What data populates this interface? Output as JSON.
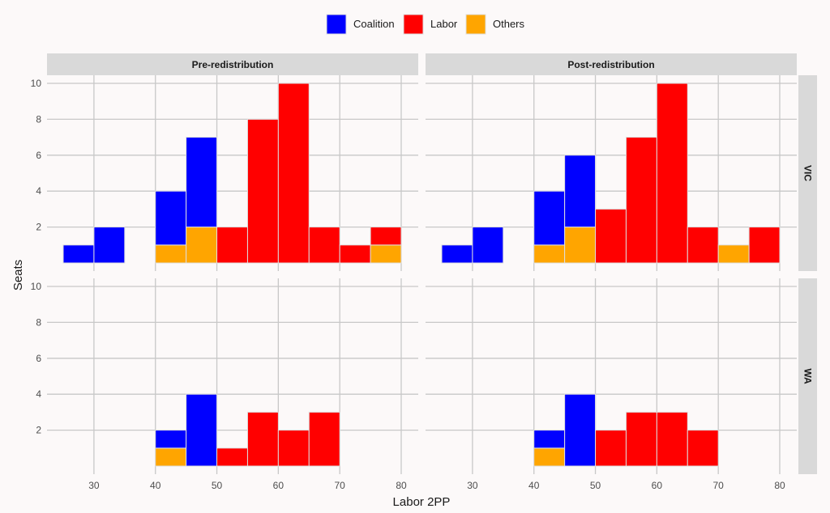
{
  "chart_data": {
    "type": "bar",
    "subtype": "faceted-stacked-histogram",
    "xlabel": "Labor 2PP",
    "ylabel": "Seats",
    "xlim": [
      25,
      80
    ],
    "ylim": [
      0,
      10
    ],
    "x_ticks": [
      30,
      40,
      50,
      60,
      70,
      80
    ],
    "y_ticks": [
      2,
      4,
      6,
      8,
      10
    ],
    "bin_width": 5,
    "grid": true,
    "legend": {
      "position": "top",
      "entries": [
        {
          "name": "Coalition",
          "color": "#0000ff"
        },
        {
          "name": "Labor",
          "color": "#ff0000"
        },
        {
          "name": "Others",
          "color": "#ffa500"
        }
      ]
    },
    "columns": [
      "Pre-redistribution",
      "Post-redistribution"
    ],
    "rows": [
      "VIC",
      "WA"
    ],
    "panels": [
      {
        "column": "Pre-redistribution",
        "row": "VIC",
        "bars": [
          {
            "x0": 25,
            "x1": 30,
            "stack": [
              {
                "party": "Coalition",
                "count": 1
              }
            ]
          },
          {
            "x0": 30,
            "x1": 35,
            "stack": [
              {
                "party": "Coalition",
                "count": 2
              }
            ]
          },
          {
            "x0": 40,
            "x1": 45,
            "stack": [
              {
                "party": "Others",
                "count": 1
              },
              {
                "party": "Coalition",
                "count": 3
              }
            ]
          },
          {
            "x0": 45,
            "x1": 50,
            "stack": [
              {
                "party": "Others",
                "count": 2
              },
              {
                "party": "Coalition",
                "count": 5
              }
            ]
          },
          {
            "x0": 50,
            "x1": 55,
            "stack": [
              {
                "party": "Labor",
                "count": 2
              }
            ]
          },
          {
            "x0": 55,
            "x1": 60,
            "stack": [
              {
                "party": "Labor",
                "count": 8
              }
            ]
          },
          {
            "x0": 60,
            "x1": 65,
            "stack": [
              {
                "party": "Labor",
                "count": 10
              }
            ]
          },
          {
            "x0": 65,
            "x1": 70,
            "stack": [
              {
                "party": "Labor",
                "count": 2
              }
            ]
          },
          {
            "x0": 70,
            "x1": 75,
            "stack": [
              {
                "party": "Labor",
                "count": 1
              }
            ]
          },
          {
            "x0": 75,
            "x1": 80,
            "stack": [
              {
                "party": "Others",
                "count": 1
              },
              {
                "party": "Labor",
                "count": 1
              }
            ]
          }
        ]
      },
      {
        "column": "Post-redistribution",
        "row": "VIC",
        "bars": [
          {
            "x0": 25,
            "x1": 30,
            "stack": [
              {
                "party": "Coalition",
                "count": 1
              }
            ]
          },
          {
            "x0": 30,
            "x1": 35,
            "stack": [
              {
                "party": "Coalition",
                "count": 2
              }
            ]
          },
          {
            "x0": 40,
            "x1": 45,
            "stack": [
              {
                "party": "Others",
                "count": 1
              },
              {
                "party": "Coalition",
                "count": 3
              }
            ]
          },
          {
            "x0": 45,
            "x1": 50,
            "stack": [
              {
                "party": "Others",
                "count": 2
              },
              {
                "party": "Coalition",
                "count": 4
              }
            ]
          },
          {
            "x0": 50,
            "x1": 55,
            "stack": [
              {
                "party": "Labor",
                "count": 3
              }
            ]
          },
          {
            "x0": 55,
            "x1": 60,
            "stack": [
              {
                "party": "Labor",
                "count": 7
              }
            ]
          },
          {
            "x0": 60,
            "x1": 65,
            "stack": [
              {
                "party": "Labor",
                "count": 10
              }
            ]
          },
          {
            "x0": 65,
            "x1": 70,
            "stack": [
              {
                "party": "Labor",
                "count": 2
              }
            ]
          },
          {
            "x0": 70,
            "x1": 75,
            "stack": [
              {
                "party": "Others",
                "count": 1
              }
            ]
          },
          {
            "x0": 75,
            "x1": 80,
            "stack": [
              {
                "party": "Labor",
                "count": 2
              }
            ]
          }
        ]
      },
      {
        "column": "Pre-redistribution",
        "row": "WA",
        "bars": [
          {
            "x0": 40,
            "x1": 45,
            "stack": [
              {
                "party": "Others",
                "count": 1
              },
              {
                "party": "Coalition",
                "count": 1
              }
            ]
          },
          {
            "x0": 45,
            "x1": 50,
            "stack": [
              {
                "party": "Coalition",
                "count": 4
              }
            ]
          },
          {
            "x0": 50,
            "x1": 55,
            "stack": [
              {
                "party": "Labor",
                "count": 1
              }
            ]
          },
          {
            "x0": 55,
            "x1": 60,
            "stack": [
              {
                "party": "Labor",
                "count": 3
              }
            ]
          },
          {
            "x0": 60,
            "x1": 65,
            "stack": [
              {
                "party": "Labor",
                "count": 2
              }
            ]
          },
          {
            "x0": 65,
            "x1": 70,
            "stack": [
              {
                "party": "Labor",
                "count": 3
              }
            ]
          }
        ]
      },
      {
        "column": "Post-redistribution",
        "row": "WA",
        "bars": [
          {
            "x0": 40,
            "x1": 45,
            "stack": [
              {
                "party": "Others",
                "count": 1
              },
              {
                "party": "Coalition",
                "count": 1
              }
            ]
          },
          {
            "x0": 45,
            "x1": 50,
            "stack": [
              {
                "party": "Coalition",
                "count": 4
              }
            ]
          },
          {
            "x0": 50,
            "x1": 55,
            "stack": [
              {
                "party": "Labor",
                "count": 2
              }
            ]
          },
          {
            "x0": 55,
            "x1": 60,
            "stack": [
              {
                "party": "Labor",
                "count": 3
              }
            ]
          },
          {
            "x0": 60,
            "x1": 65,
            "stack": [
              {
                "party": "Labor",
                "count": 3
              }
            ]
          },
          {
            "x0": 65,
            "x1": 70,
            "stack": [
              {
                "party": "Labor",
                "count": 2
              }
            ]
          }
        ]
      }
    ]
  },
  "colors": {
    "background": "#fcf9f9",
    "strip": "#d9d9d9",
    "grid": "#c8c8c8",
    "bar_outline": "#dedede"
  }
}
